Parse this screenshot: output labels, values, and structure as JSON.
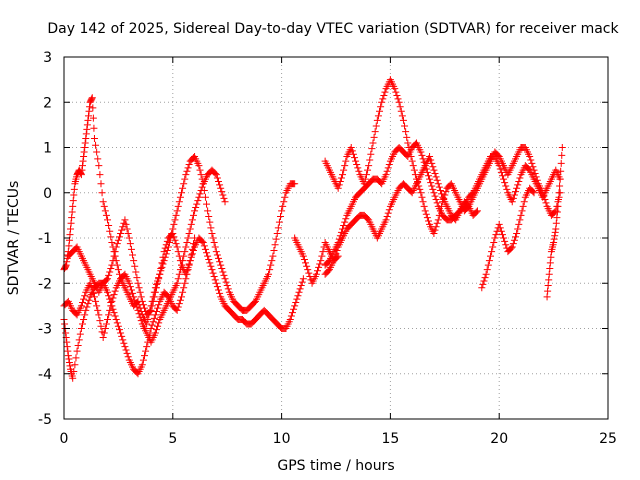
{
  "chart_data": {
    "type": "scatter",
    "title": "Day 142 of 2025, Sidereal Day-to-day VTEC variation (SDTVAR) for receiver mack",
    "xlabel": "GPS time / hours",
    "ylabel": "SDTVAR / TECUs",
    "xlim": [
      0,
      25
    ],
    "ylim": [
      -5,
      3
    ],
    "x_ticks": [
      0,
      5,
      10,
      15,
      20,
      25
    ],
    "y_ticks": [
      -5,
      -4,
      -3,
      -2,
      -1,
      0,
      1,
      2,
      3
    ],
    "grid": true,
    "legend": "none",
    "marker": "+",
    "color": "#ff0000",
    "series": [
      {
        "x": [
          0.0,
          0.1,
          0.2,
          0.3,
          0.4,
          0.5,
          0.6,
          0.7,
          0.8,
          0.9,
          1.0,
          1.1,
          1.2,
          1.3,
          1.4,
          1.6,
          1.8,
          2.0,
          2.2,
          2.4,
          2.6,
          2.8,
          3.0,
          3.2,
          3.4,
          3.6,
          3.8,
          4.0,
          4.2,
          4.4,
          4.6,
          4.8,
          5.0,
          5.2,
          5.4,
          5.6,
          5.8,
          6.0,
          6.2,
          6.4,
          6.6,
          6.8,
          7.0,
          7.2,
          7.4,
          7.6,
          7.8,
          8.0,
          8.2,
          8.4,
          8.6,
          8.8,
          9.0,
          9.2,
          9.4,
          9.6,
          9.8,
          10.0,
          10.2,
          10.4,
          10.6
        ],
        "y": [
          -1.7,
          -1.6,
          -1.3,
          -0.8,
          -0.3,
          0.2,
          0.4,
          0.5,
          0.4,
          0.8,
          1.2,
          1.6,
          2.0,
          2.1,
          1.2,
          0.6,
          -0.2,
          -0.6,
          -1.1,
          -1.5,
          -1.9,
          -2.1,
          -2.3,
          -2.5,
          -2.4,
          -2.7,
          -2.9,
          -2.5,
          -2.1,
          -1.8,
          -1.5,
          -1.2,
          -0.8,
          -0.4,
          0.0,
          0.4,
          0.7,
          0.8,
          0.6,
          0.2,
          -0.4,
          -0.9,
          -1.3,
          -1.6,
          -1.9,
          -2.2,
          -2.4,
          -2.5,
          -2.6,
          -2.6,
          -2.5,
          -2.4,
          -2.2,
          -2.0,
          -1.8,
          -1.4,
          -0.9,
          -0.4,
          0.0,
          0.2,
          0.2
        ]
      },
      {
        "x": [
          0.0,
          0.1,
          0.2,
          0.3,
          0.4,
          0.6,
          0.8,
          1.0,
          1.2,
          1.4,
          1.6,
          1.8,
          2.0,
          2.2,
          2.4,
          2.6,
          2.8,
          3.0,
          3.2,
          3.4,
          3.6,
          3.8,
          4.0,
          4.2,
          4.4,
          4.6,
          4.8,
          5.0,
          5.2,
          5.4,
          5.6,
          5.8,
          6.0,
          6.2,
          6.4,
          6.6,
          6.8,
          7.0,
          7.2,
          7.4,
          7.6,
          7.8,
          8.0,
          8.2,
          8.4,
          8.6,
          8.8,
          9.0,
          9.2,
          9.4,
          9.6,
          9.8,
          10.0,
          10.2,
          10.4,
          10.6,
          10.8,
          11.0
        ],
        "y": [
          -2.8,
          -3.2,
          -3.6,
          -3.9,
          -4.1,
          -3.5,
          -3.0,
          -2.6,
          -2.3,
          -2.1,
          -2.0,
          -2.0,
          -2.2,
          -2.5,
          -2.8,
          -3.1,
          -3.4,
          -3.7,
          -3.9,
          -4.0,
          -3.8,
          -3.4,
          -3.0,
          -2.7,
          -2.4,
          -2.2,
          -2.3,
          -2.5,
          -2.6,
          -2.3,
          -1.9,
          -1.5,
          -1.2,
          -1.0,
          -1.1,
          -1.4,
          -1.7,
          -2.0,
          -2.3,
          -2.5,
          -2.6,
          -2.7,
          -2.8,
          -2.8,
          -2.9,
          -2.9,
          -2.8,
          -2.7,
          -2.6,
          -2.7,
          -2.8,
          -2.9,
          -3.0,
          -3.0,
          -2.8,
          -2.5,
          -2.2,
          -1.9
        ]
      },
      {
        "x": [
          0.0,
          0.2,
          0.4,
          0.6,
          0.8,
          1.0,
          1.2,
          1.4,
          1.6,
          1.8,
          2.0,
          2.2,
          2.4,
          2.6,
          2.8,
          3.0,
          3.2,
          3.4,
          3.6,
          3.8,
          4.0,
          4.2,
          4.4,
          4.6,
          4.8,
          5.0,
          5.2,
          5.4,
          5.6,
          5.8,
          6.0,
          6.2,
          6.4,
          6.6,
          6.8,
          7.0,
          7.2,
          7.4
        ],
        "y": [
          -2.5,
          -2.4,
          -2.6,
          -2.7,
          -2.5,
          -2.2,
          -2.0,
          -2.3,
          -2.7,
          -3.2,
          -2.8,
          -2.4,
          -2.1,
          -1.9,
          -1.8,
          -2.0,
          -2.3,
          -2.6,
          -2.9,
          -3.1,
          -3.3,
          -3.1,
          -2.8,
          -2.6,
          -2.4,
          -2.2,
          -2.0,
          -1.6,
          -1.2,
          -0.8,
          -0.4,
          -0.1,
          0.2,
          0.4,
          0.5,
          0.4,
          0.1,
          -0.2
        ]
      },
      {
        "x": [
          0.2,
          0.4,
          0.6,
          0.8,
          1.0,
          1.2,
          1.4,
          1.6,
          1.8,
          2.0,
          2.2,
          2.4,
          2.6,
          2.8,
          3.0,
          3.2,
          3.4,
          3.6,
          3.8,
          4.0,
          4.2,
          4.4,
          4.6,
          4.8,
          5.0,
          5.2,
          5.4,
          5.6,
          5.8,
          6.0
        ],
        "y": [
          -1.4,
          -1.3,
          -1.2,
          -1.4,
          -1.6,
          -1.8,
          -2.0,
          -2.2,
          -2.0,
          -1.9,
          -1.6,
          -1.2,
          -0.9,
          -0.6,
          -1.0,
          -1.5,
          -2.0,
          -2.4,
          -2.7,
          -2.6,
          -2.2,
          -1.8,
          -1.3,
          -1.0,
          -0.9,
          -1.2,
          -1.6,
          -1.8,
          -1.5,
          -1.0
        ]
      },
      {
        "x": [
          12.0,
          12.2,
          12.4,
          12.6,
          12.8,
          13.0,
          13.2,
          13.4,
          13.6,
          13.8,
          14.0,
          14.2,
          14.4,
          14.6,
          14.8,
          15.0,
          15.2,
          15.4,
          15.6,
          15.8,
          16.0,
          16.2,
          16.4,
          16.6,
          16.8,
          17.0,
          17.2,
          17.4,
          17.6,
          17.8,
          18.0,
          18.2,
          18.4,
          18.6,
          18.8,
          19.0,
          19.2,
          19.4,
          19.6,
          19.8,
          20.0,
          20.2,
          20.4,
          20.6,
          20.8,
          21.0,
          21.2,
          21.4,
          21.6,
          21.8,
          22.0,
          22.2,
          22.4,
          22.6,
          22.8
        ],
        "y": [
          0.7,
          0.5,
          0.3,
          0.1,
          0.4,
          0.8,
          1.0,
          0.7,
          0.4,
          0.2,
          0.6,
          1.1,
          1.6,
          2.0,
          2.3,
          2.5,
          2.3,
          2.0,
          1.6,
          1.1,
          0.7,
          0.3,
          0.0,
          -0.4,
          -0.7,
          -0.9,
          -0.6,
          -0.2,
          0.1,
          0.2,
          0.0,
          -0.2,
          -0.4,
          -0.3,
          -0.1,
          0.1,
          0.3,
          0.5,
          0.7,
          0.9,
          0.8,
          0.6,
          0.4,
          0.6,
          0.8,
          1.0,
          1.0,
          0.8,
          0.5,
          0.2,
          0.0,
          -0.3,
          -0.5,
          -0.4,
          0.0
        ]
      },
      {
        "x": [
          12.0,
          12.2,
          12.4,
          12.6,
          12.8,
          13.0,
          13.2,
          13.4,
          13.6,
          13.8,
          14.0,
          14.2,
          14.4,
          14.6,
          14.8,
          15.0,
          15.2,
          15.4,
          15.6,
          15.8,
          16.0,
          16.2,
          16.4,
          16.6,
          16.8,
          17.0,
          17.2,
          17.4,
          17.6,
          17.8,
          18.0,
          18.2,
          18.4,
          18.6,
          18.8,
          19.0,
          19.2,
          19.4,
          19.6,
          19.8,
          20.0,
          20.2,
          20.4,
          20.6,
          20.8,
          21.0,
          21.2,
          21.4,
          21.6,
          21.8,
          22.0,
          22.2,
          22.4,
          22.6,
          22.8
        ],
        "y": [
          -1.6,
          -1.5,
          -1.3,
          -1.1,
          -0.8,
          -0.5,
          -0.3,
          -0.1,
          0.0,
          0.1,
          0.2,
          0.3,
          0.3,
          0.2,
          0.4,
          0.7,
          0.9,
          1.0,
          0.9,
          0.8,
          1.0,
          1.1,
          0.9,
          0.6,
          0.3,
          0.0,
          -0.3,
          -0.5,
          -0.6,
          -0.6,
          -0.5,
          -0.4,
          -0.3,
          -0.1,
          0.0,
          0.2,
          0.4,
          0.6,
          0.8,
          0.8,
          0.6,
          0.3,
          0.0,
          -0.2,
          0.1,
          0.4,
          0.6,
          0.5,
          0.3,
          0.1,
          -0.1,
          0.1,
          0.3,
          0.5,
          0.3
        ]
      },
      {
        "x": [
          12.0,
          12.2,
          12.4,
          12.6,
          12.8,
          13.0,
          13.2,
          13.4,
          13.6,
          13.8,
          14.0,
          14.2,
          14.4,
          14.6,
          14.8,
          15.0,
          15.2,
          15.4,
          15.6,
          15.8,
          16.0,
          16.2,
          16.4,
          16.6,
          16.8,
          17.0,
          17.2,
          17.4,
          17.6,
          17.8,
          18.0,
          18.2,
          18.4,
          18.6,
          18.8,
          19.0
        ],
        "y": [
          -1.8,
          -1.7,
          -1.5,
          -1.2,
          -1.0,
          -0.8,
          -0.7,
          -0.6,
          -0.5,
          -0.5,
          -0.6,
          -0.8,
          -1.0,
          -0.8,
          -0.6,
          -0.3,
          -0.1,
          0.1,
          0.2,
          0.1,
          0.0,
          0.2,
          0.4,
          0.6,
          0.8,
          0.5,
          0.2,
          -0.1,
          -0.3,
          -0.5,
          -0.6,
          -0.4,
          -0.2,
          -0.3,
          -0.5,
          -0.4
        ]
      },
      {
        "x": [
          19.2,
          19.4,
          19.6,
          19.8,
          20.0,
          20.2,
          20.4,
          20.6,
          20.8,
          21.0,
          21.2,
          21.4,
          21.6
        ],
        "y": [
          -2.1,
          -1.8,
          -1.4,
          -1.0,
          -0.7,
          -1.0,
          -1.3,
          -1.2,
          -0.9,
          -0.5,
          -0.1,
          0.1,
          0.0
        ]
      },
      {
        "x": [
          22.2,
          22.3,
          22.4,
          22.5,
          22.6,
          22.7,
          22.8,
          22.9
        ],
        "y": [
          -2.3,
          -1.8,
          -1.3,
          -1.1,
          -0.8,
          -0.3,
          0.3,
          1.0
        ]
      },
      {
        "x": [
          10.6,
          10.8,
          11.0,
          11.2,
          11.4,
          11.6,
          11.8,
          12.0,
          12.2,
          12.4,
          12.6
        ],
        "y": [
          -1.0,
          -1.2,
          -1.4,
          -1.7,
          -2.0,
          -1.8,
          -1.5,
          -1.1,
          -1.3,
          -1.5,
          -1.4
        ]
      }
    ]
  }
}
